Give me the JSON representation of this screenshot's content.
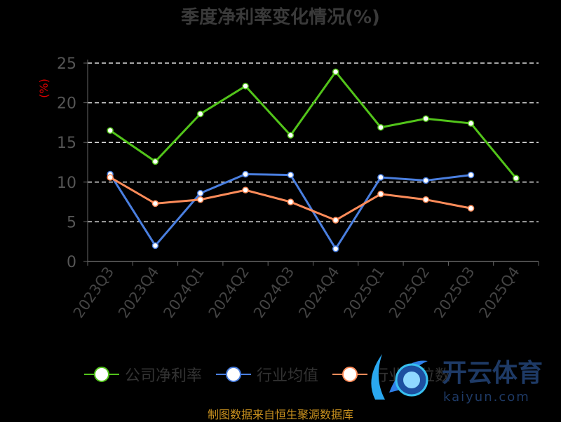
{
  "chart_data": {
    "type": "line",
    "title": "季度净利率变化情况(%)",
    "ylabel": "(%)",
    "xlabel": "",
    "ylim": [
      0,
      25
    ],
    "yticks": [
      0,
      5,
      10,
      15,
      20,
      25
    ],
    "grid": true,
    "legend_position": "bottom",
    "categories": [
      "2023Q3",
      "2023Q4",
      "2024Q1",
      "2024Q2",
      "2024Q3",
      "2024Q4",
      "2025Q1",
      "2025Q2",
      "2025Q3",
      "2025Q4"
    ],
    "series": [
      {
        "name": "公司净利率",
        "color": "#52c41a",
        "values": [
          16.5,
          12.6,
          18.6,
          22.1,
          15.9,
          23.9,
          16.9,
          18.0,
          17.4,
          10.5
        ]
      },
      {
        "name": "行业均值",
        "color": "#4a7fe0",
        "values": [
          11.0,
          2.0,
          8.6,
          11.0,
          10.9,
          1.6,
          10.6,
          10.2,
          10.9,
          null
        ]
      },
      {
        "name": "行业中位数",
        "color": "#ff8c5a",
        "values": [
          10.6,
          7.3,
          7.8,
          9.0,
          7.5,
          5.2,
          8.5,
          7.8,
          6.7,
          null
        ]
      }
    ]
  },
  "source": "制图数据来自恒生聚源数据库",
  "watermark": {
    "brand": "开云体育",
    "url": "kaiyun.com"
  }
}
